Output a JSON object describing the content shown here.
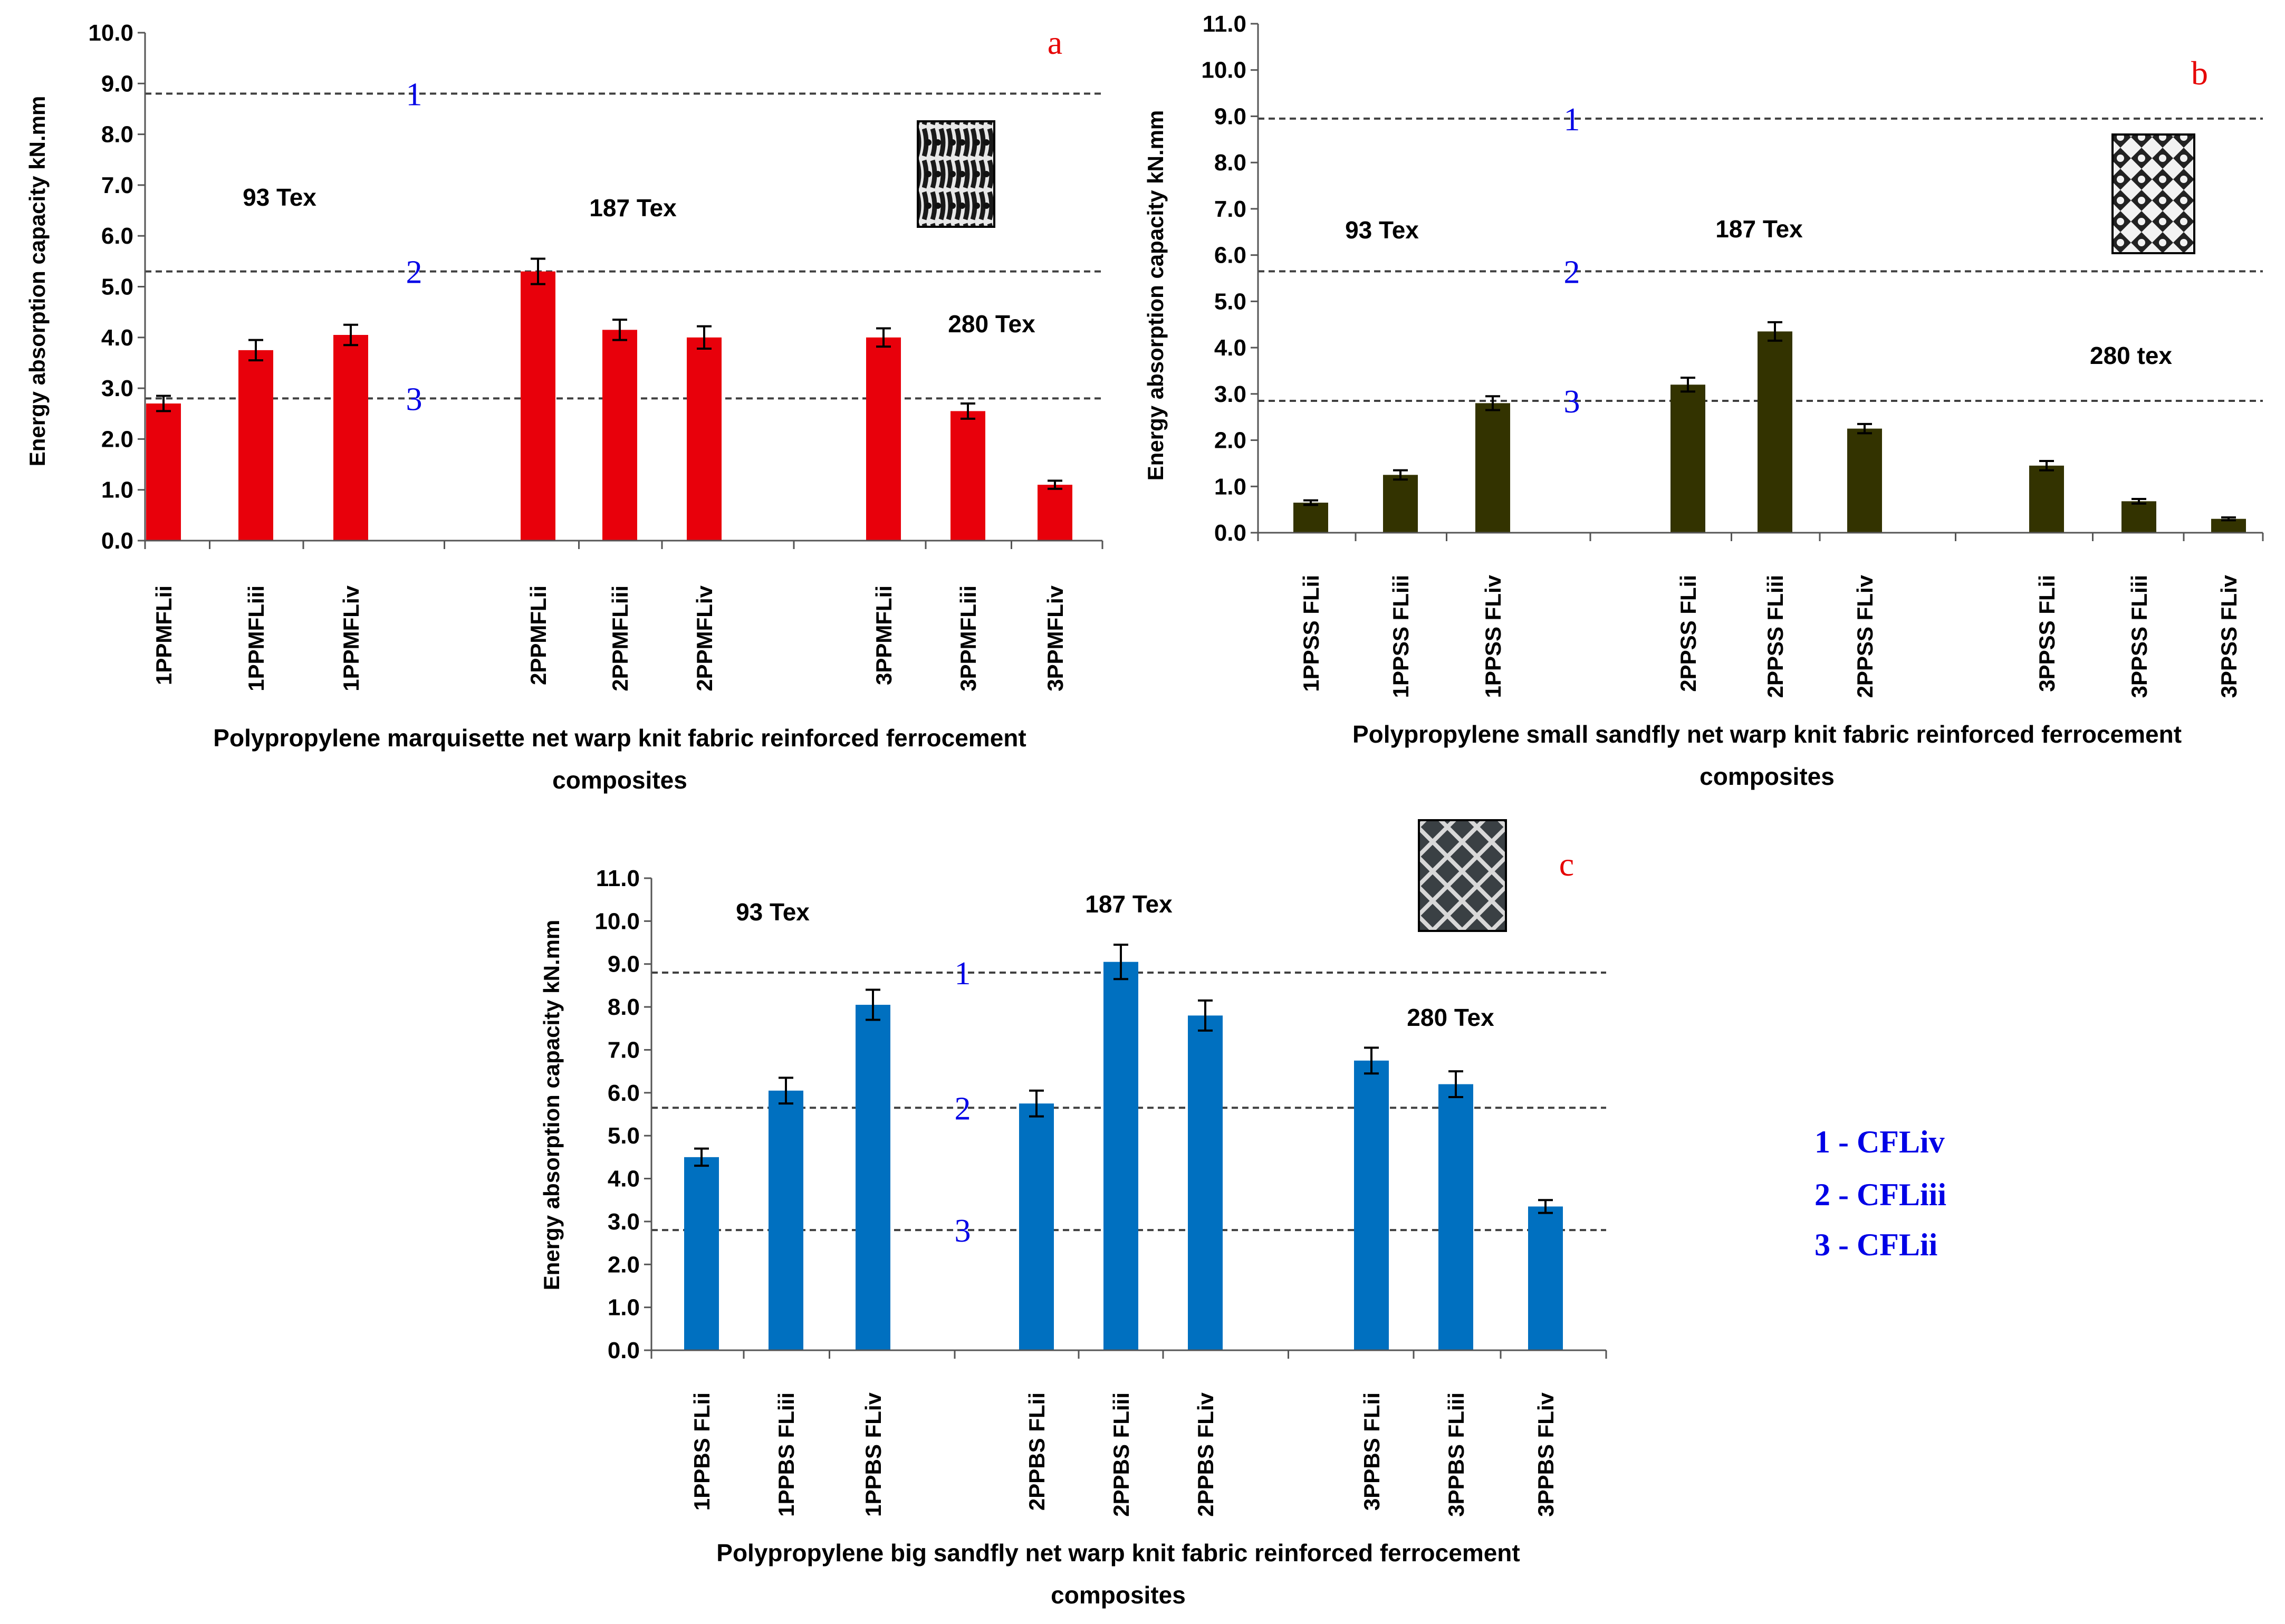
{
  "colors": {
    "a_bar": "#e8000b",
    "b_bar": "#333300",
    "c_bar": "#0070c0",
    "line": "#404040",
    "line_label": "#0000e6",
    "panel_letter": "#e60000",
    "text": "#000000"
  },
  "legend": {
    "items": [
      "1 - CFLiv",
      "2 - CFLiii",
      "3 - CFLii"
    ]
  },
  "chart_data": [
    {
      "id": "a",
      "type": "bar",
      "panel_label": "a",
      "ylabel": "Energy absorption capacity  kN.mm",
      "ylim": [
        0,
        10
      ],
      "yticks": [
        "0.0",
        "1.0",
        "2.0",
        "3.0",
        "4.0",
        "5.0",
        "6.0",
        "7.0",
        "8.0",
        "9.0",
        "10.0"
      ],
      "categories": [
        "1PPMFLii",
        "1PPMFLiii",
        "1PPMFLiv",
        "2PPMFLii",
        "2PPMFLiii",
        "2PPMFLiv",
        "3PPMFLii",
        "3PPMFLiii",
        "3PPMFLiv"
      ],
      "values": [
        2.7,
        3.75,
        4.05,
        5.3,
        4.15,
        4.0,
        4.0,
        2.55,
        1.1
      ],
      "errors": [
        0.15,
        0.2,
        0.2,
        0.25,
        0.2,
        0.22,
        0.18,
        0.15,
        0.08
      ],
      "reference_lines": [
        {
          "label": "1",
          "value": 8.8
        },
        {
          "label": "2",
          "value": 5.3
        },
        {
          "label": "3",
          "value": 2.8
        }
      ],
      "group_labels": [
        "93 Tex",
        "187 Tex",
        "280 Tex"
      ],
      "xlabel_lines": [
        "Polypropylene  marquisette  net warp  knit fabric  reinforced ferrocement",
        "composites"
      ]
    },
    {
      "id": "b",
      "type": "bar",
      "panel_label": "b",
      "ylabel": "Energy absorption capacity  kN.mm",
      "ylim": [
        0,
        11
      ],
      "yticks": [
        "0.0",
        "1.0",
        "2.0",
        "3.0",
        "4.0",
        "5.0",
        "6.0",
        "7.0",
        "8.0",
        "9.0",
        "10.0",
        "11.0"
      ],
      "categories": [
        "1PPSS FLii",
        "1PPSS FLiii",
        "1PPSS FLiv",
        "2PPSS FLii",
        "2PPSS FLiii",
        "2PPSS FLiv",
        "3PPSS FLii",
        "3PPSS FLiii",
        "3PPSS FLiv"
      ],
      "values": [
        0.65,
        1.25,
        2.8,
        3.2,
        4.35,
        2.25,
        1.45,
        0.68,
        0.3
      ],
      "errors": [
        0.05,
        0.1,
        0.15,
        0.15,
        0.2,
        0.1,
        0.1,
        0.05,
        0.03
      ],
      "reference_lines": [
        {
          "label": "1",
          "value": 8.95
        },
        {
          "label": "2",
          "value": 5.65
        },
        {
          "label": "3",
          "value": 2.85
        }
      ],
      "group_labels": [
        "93 Tex",
        "187 Tex",
        "280 tex"
      ],
      "xlabel_lines": [
        "Polypropylene   small  sandfly   net warp  knit fabric   reinforced  ferrocement",
        "composites"
      ]
    },
    {
      "id": "c",
      "type": "bar",
      "panel_label": "c",
      "ylabel": "Energy absorption capacity  kN.mm",
      "ylim": [
        0,
        11
      ],
      "yticks": [
        "0.0",
        "1.0",
        "2.0",
        "3.0",
        "4.0",
        "5.0",
        "6.0",
        "7.0",
        "8.0",
        "9.0",
        "10.0",
        "11.0"
      ],
      "categories": [
        "1PPBS FLii",
        "1PPBS FLiii",
        "1PPBS FLiv",
        "2PPBS FLii",
        "2PPBS FLiii",
        "2PPBS FLiv",
        "3PPBS FLii",
        "3PPBS FLiii",
        "3PPBS FLiv"
      ],
      "values": [
        4.5,
        6.05,
        8.05,
        5.75,
        9.05,
        7.8,
        6.75,
        6.2,
        3.35
      ],
      "errors": [
        0.2,
        0.3,
        0.35,
        0.3,
        0.4,
        0.35,
        0.3,
        0.3,
        0.15
      ],
      "reference_lines": [
        {
          "label": "1",
          "value": 8.8
        },
        {
          "label": "2",
          "value": 5.65
        },
        {
          "label": "3",
          "value": 2.8
        }
      ],
      "group_labels": [
        "93 Tex",
        "187 Tex",
        "280 Tex"
      ],
      "xlabel_lines": [
        "Polypropylene   big  sandfly  net warp  knit fabric  reinforced  ferrocement",
        "composites"
      ]
    }
  ]
}
